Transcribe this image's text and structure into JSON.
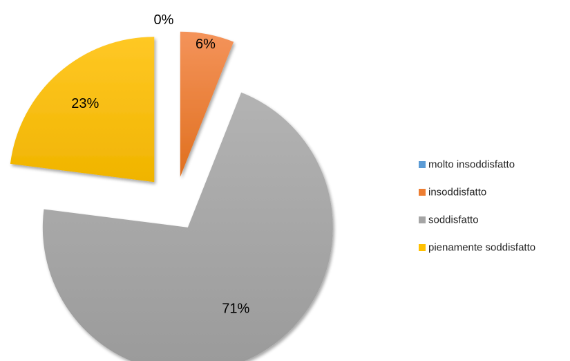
{
  "chart_data": {
    "type": "pie",
    "exploded": true,
    "legend_position": "right",
    "categories": [
      "molto insoddisfatto",
      "insoddisfatto",
      "soddisfatto",
      "pienamente soddisfatto"
    ],
    "values": [
      0,
      6,
      71,
      23
    ],
    "data_labels": [
      "0%",
      "6%",
      "71%",
      "23%"
    ],
    "colors": [
      "#5B9BD5",
      "#ED7D31",
      "#A5A5A5",
      "#FFC000"
    ]
  }
}
